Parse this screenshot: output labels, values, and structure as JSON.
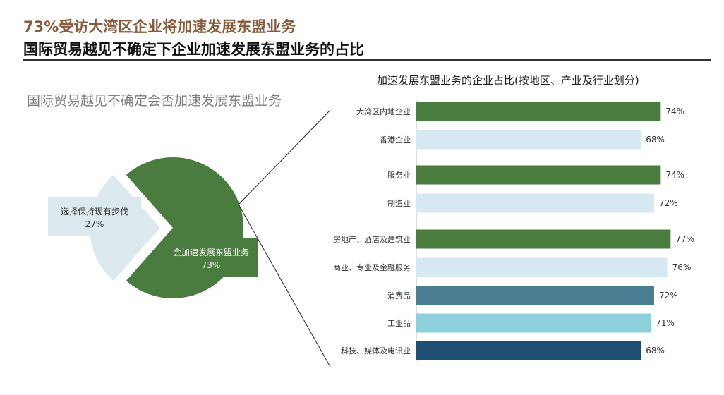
{
  "header": {
    "title_line1": "73%受访大湾区企业将加速发展东盟业务",
    "title_line2": "国际贸易越见不确定下企业加速发展东盟业务的占比"
  },
  "chart_data": [
    {
      "type": "pie",
      "title": "国际贸易越见不确定会否加速发展东盟业务",
      "slices": [
        {
          "label": "会加速发展东盟业务",
          "value": 73,
          "value_label": "73%",
          "color": "#4a7c3f"
        },
        {
          "label": "选择保持现有步伐",
          "value": 27,
          "value_label": "27%",
          "color": "#dce9ee"
        }
      ]
    },
    {
      "type": "bar",
      "orientation": "horizontal",
      "title": "加速发展东盟业务的企业占比(按地区、产业及行业划分)",
      "xlim": [
        0,
        100
      ],
      "groups": [
        {
          "name": "region",
          "categories": [
            "大湾区内地企业",
            "香港企业"
          ],
          "values": [
            74,
            68
          ],
          "labels": [
            "74%",
            "68%"
          ],
          "colors": [
            "#4a7c3f",
            "#d6e9f3"
          ]
        },
        {
          "name": "industry",
          "categories": [
            "服务业",
            "制造业"
          ],
          "values": [
            74,
            72
          ],
          "labels": [
            "74%",
            "72%"
          ],
          "colors": [
            "#4a7c3f",
            "#d6e9f3"
          ]
        },
        {
          "name": "sector",
          "categories": [
            "房地产、酒店及建筑业",
            "商业、专业及金融服务",
            "消费品",
            "工业品",
            "科技、媒体及电讯业"
          ],
          "values": [
            77,
            76,
            72,
            71,
            68
          ],
          "labels": [
            "77%",
            "76%",
            "72%",
            "71%",
            "68%"
          ],
          "colors": [
            "#4a7c3f",
            "#d6e9f3",
            "#4a7f93",
            "#8ecfdc",
            "#1f4f72"
          ]
        }
      ]
    }
  ]
}
